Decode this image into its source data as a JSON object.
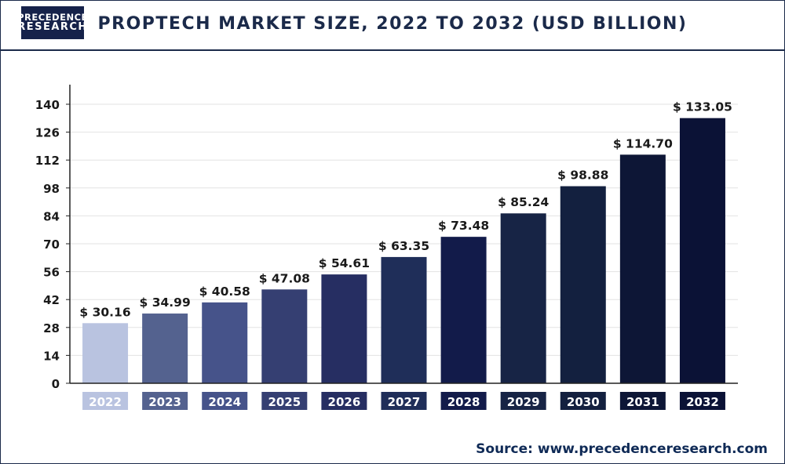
{
  "brand": {
    "line1": "PRECEDENCE",
    "line2": "RESEARCH"
  },
  "title": "PROPTECH MARKET SIZE, 2022 TO 2032 (USD BILLION)",
  "source": {
    "label": "Source:",
    "url": "www.precedenceresearch.com"
  },
  "chart_data": {
    "type": "bar",
    "title": "PROPTECH MARKET SIZE, 2022 TO 2032 (USD BILLION)",
    "categories": [
      "2022",
      "2023",
      "2024",
      "2025",
      "2026",
      "2027",
      "2028",
      "2029",
      "2030",
      "2031",
      "2032"
    ],
    "values": [
      30.16,
      34.99,
      40.58,
      47.08,
      54.61,
      63.35,
      73.48,
      85.24,
      98.88,
      114.7,
      133.05
    ],
    "value_labels": [
      "$ 30.16",
      "$ 34.99",
      "$ 40.58",
      "$ 47.08",
      "$ 54.61",
      "$ 63.35",
      "$ 73.48",
      "$ 85.24",
      "$ 98.88",
      "$ 114.70",
      "$ 133.05"
    ],
    "bar_colors": [
      "#b9c3e0",
      "#54628f",
      "#46538a",
      "#353f72",
      "#262e62",
      "#1f2e59",
      "#121b4a",
      "#172445",
      "#13203f",
      "#0d1636",
      "#0b1236"
    ],
    "yticks": [
      0,
      14,
      28,
      42,
      56,
      70,
      84,
      98,
      112,
      126,
      140
    ],
    "ylim": [
      0,
      140
    ],
    "xlabel": "",
    "ylabel": "",
    "grid": true,
    "legend": "none"
  }
}
